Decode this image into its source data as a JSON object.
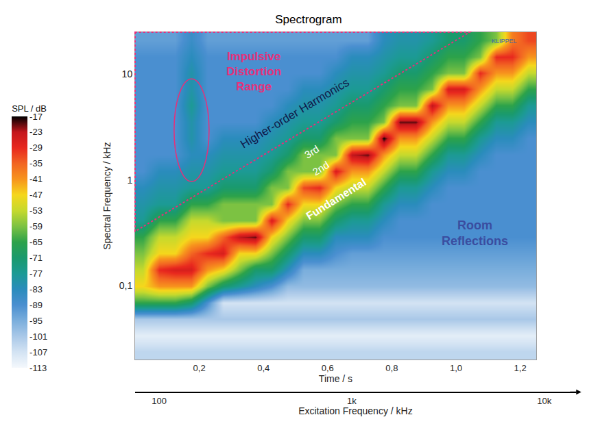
{
  "chart_data": {
    "type": "heatmap",
    "title": "Spectrogram",
    "x_label": "Time / s",
    "y_label": "Spectral Frequency / kHz",
    "x2_label": "Excitation Frequency / kHz",
    "log": [
      "y",
      "x2"
    ],
    "grid": false,
    "x": [
      0,
      0.05,
      0.1,
      0.15,
      0.2,
      0.25,
      0.3,
      0.35,
      0.4,
      0.45,
      0.5,
      0.55,
      0.6,
      0.65,
      0.7,
      0.75,
      0.8,
      0.85,
      0.9,
      0.95,
      1.0,
      1.05,
      1.1,
      1.15,
      1.2,
      1.25
    ],
    "y": [
      0.02,
      0.0285,
      0.0407,
      0.0582,
      0.0832,
      0.119,
      0.17,
      0.243,
      0.347,
      0.495,
      0.708,
      1.01,
      1.45,
      2.07,
      2.95,
      4.22,
      6.03,
      8.61,
      12.3,
      17.6,
      25.1
    ],
    "z": [
      [
        -104,
        -104,
        -104,
        -104,
        -104,
        -104,
        -104,
        -104,
        -104,
        -104,
        -104,
        -104,
        -104,
        -104,
        -104,
        -104,
        -104,
        -104,
        -104,
        -104,
        -104,
        -104,
        -104,
        -104,
        -104
      ],
      [
        -110,
        -110,
        -110,
        -110,
        -110,
        -110,
        -110,
        -110,
        -110,
        -110,
        -110,
        -110,
        -110,
        -110,
        -110,
        -110,
        -110,
        -110,
        -110,
        -110,
        -110,
        -110,
        -110,
        -110,
        -110
      ],
      [
        -101,
        -101,
        -101,
        -101,
        -101,
        -101,
        -101,
        -101,
        -101,
        -101,
        -101,
        -101,
        -101,
        -101,
        -101,
        -101,
        -101,
        -101,
        -101,
        -101,
        -101,
        -101,
        -101,
        -101,
        -101
      ],
      [
        -65,
        -65,
        -65,
        -71,
        -89,
        -107,
        -107,
        -107,
        -107,
        -107,
        -107,
        -107,
        -107,
        -107,
        -107,
        -107,
        -107,
        -107,
        -107,
        -107,
        -107,
        -107,
        -107,
        -107,
        -107
      ],
      [
        -47,
        -41,
        -41,
        -41,
        -59,
        -71,
        -77,
        -83,
        -89,
        -98,
        -98,
        -98,
        -98,
        -98,
        -98,
        -98,
        -98,
        -98,
        -98,
        -98,
        -98,
        -98,
        -98,
        -98,
        -98
      ],
      [
        -53,
        -29,
        -26,
        -26,
        -41,
        -47,
        -59,
        -71,
        -71,
        -83,
        -95,
        -95,
        -95,
        -95,
        -95,
        -95,
        -95,
        -95,
        -95,
        -95,
        -95,
        -95,
        -95,
        -95,
        -95
      ],
      [
        -59,
        -47,
        -47,
        -35,
        -29,
        -26,
        -47,
        -47,
        -59,
        -71,
        -83,
        -83,
        -89,
        -92,
        -92,
        -92,
        -92,
        -92,
        -92,
        -92,
        -92,
        -92,
        -92,
        -92,
        -92
      ],
      [
        -65,
        -53,
        -53,
        -47,
        -47,
        -35,
        -23,
        -20,
        -47,
        -59,
        -71,
        -71,
        -83,
        -83,
        -83,
        -89,
        -89,
        -89,
        -89,
        -89,
        -89,
        -89,
        -89,
        -89,
        -89
      ],
      [
        -77,
        -65,
        -65,
        -53,
        -53,
        -59,
        -59,
        -59,
        -26,
        -47,
        -59,
        -59,
        -71,
        -77,
        -77,
        -83,
        -89,
        -89,
        -89,
        -89,
        -89,
        -89,
        -89,
        -89,
        -89
      ],
      [
        -80,
        -77,
        -77,
        -65,
        -65,
        -59,
        -59,
        -59,
        -59,
        -29,
        -47,
        -47,
        -59,
        -65,
        -65,
        -77,
        -83,
        -83,
        -89,
        -89,
        -89,
        -89,
        -89,
        -89,
        -89
      ],
      [
        -83,
        -80,
        -80,
        -77,
        -77,
        -71,
        -71,
        -71,
        -59,
        -59,
        -32,
        -29,
        -47,
        -53,
        -53,
        -65,
        -77,
        -77,
        -83,
        -89,
        -89,
        -89,
        -89,
        -89,
        -89
      ],
      [
        -89,
        -83,
        -83,
        -80,
        -80,
        -77,
        -77,
        -77,
        -71,
        -59,
        -59,
        -59,
        -26,
        -41,
        -41,
        -53,
        -65,
        -65,
        -77,
        -83,
        -83,
        -89,
        -89,
        -89,
        -89
      ],
      [
        -89,
        -89,
        -89,
        -83,
        -83,
        -80,
        -80,
        -80,
        -77,
        -71,
        -59,
        -59,
        -59,
        -23,
        -20,
        -41,
        -53,
        -53,
        -65,
        -77,
        -77,
        -83,
        -89,
        -89,
        -89
      ],
      [
        -89,
        -89,
        -89,
        -80,
        -89,
        -83,
        -83,
        -83,
        -80,
        -77,
        -71,
        -71,
        -59,
        -59,
        -59,
        -17,
        -41,
        -41,
        -53,
        -65,
        -65,
        -77,
        -83,
        -83,
        -89
      ],
      [
        -89,
        -89,
        -89,
        -80,
        -89,
        -89,
        -89,
        -89,
        -83,
        -80,
        -77,
        -77,
        -71,
        -65,
        -65,
        -59,
        -20,
        -20,
        -41,
        -53,
        -53,
        -65,
        -77,
        -77,
        -83
      ],
      [
        -89,
        -89,
        -89,
        -77,
        -89,
        -89,
        -89,
        -89,
        -89,
        -83,
        -80,
        -80,
        -77,
        -71,
        -71,
        -65,
        -59,
        -59,
        -23,
        -41,
        -41,
        -53,
        -65,
        -65,
        -77
      ],
      [
        -89,
        -89,
        -89,
        -80,
        -89,
        -89,
        -89,
        -89,
        -89,
        -89,
        -83,
        -83,
        -80,
        -77,
        -77,
        -71,
        -65,
        -65,
        -59,
        -26,
        -26,
        -41,
        -53,
        -53,
        -65
      ],
      [
        -89,
        -89,
        -89,
        -80,
        -89,
        -89,
        -89,
        -89,
        -89,
        -89,
        -89,
        -89,
        -83,
        -80,
        -80,
        -77,
        -71,
        -71,
        -65,
        -59,
        -59,
        -29,
        -41,
        -41,
        -53
      ],
      [
        -89,
        -89,
        -89,
        -83,
        -89,
        -89,
        -89,
        -89,
        -89,
        -89,
        -89,
        -89,
        -89,
        -83,
        -83,
        -80,
        -77,
        -77,
        -71,
        -65,
        -65,
        -59,
        -29,
        -29,
        -41
      ],
      [
        -92,
        -92,
        -92,
        -86,
        -92,
        -92,
        -92,
        -92,
        -92,
        -92,
        -92,
        -92,
        -92,
        -92,
        -92,
        -83,
        -80,
        -80,
        -77,
        -71,
        -71,
        -65,
        -59,
        -38,
        -32
      ]
    ],
    "xlim": [
      0,
      1.25
    ],
    "xticks": [
      {
        "value": 0.2,
        "label": "0,2"
      },
      {
        "value": 0.4,
        "label": "0,4"
      },
      {
        "value": 0.6,
        "label": "0,6"
      },
      {
        "value": 0.8,
        "label": "0,8"
      },
      {
        "value": 1.0,
        "label": "1,0"
      },
      {
        "value": 1.2,
        "label": "1,2"
      }
    ],
    "ylim": [
      0.02,
      25
    ],
    "yticks": [
      {
        "value": 0.1,
        "label": "0,1"
      },
      1,
      10
    ],
    "x2lim": [
      75,
      14600
    ],
    "x2ticks": [
      100,
      {
        "value": 1000,
        "label": "1k"
      },
      {
        "value": 10000,
        "label": "10k"
      }
    ],
    "colorbar": {
      "title": "SPL / dB",
      "range": [
        -113,
        -17
      ],
      "ticks": [
        -17,
        -23,
        -29,
        -35,
        -41,
        -47,
        -53,
        -59,
        -65,
        -71,
        -77,
        -83,
        -89,
        -95,
        -101,
        -107,
        -113
      ],
      "colors": [
        "#000000",
        "#c4161c",
        "#e8281e",
        "#f26522",
        "#f7941d",
        "#f5d71c",
        "#c5d92d",
        "#7cc242",
        "#2ca24a",
        "#1a9a6c",
        "#1c9a94",
        "#2a8cbc",
        "#4a8fd0",
        "#7aaedc",
        "#a9c8e8",
        "#d3e3f3",
        "#f4f8fc"
      ]
    },
    "annotations": [
      "Impulsive Distortion Range",
      "Higher-order Harmonics",
      "3rd",
      "2nd",
      "Fundamental",
      "Room Reflections",
      "KLIPPEL"
    ]
  }
}
